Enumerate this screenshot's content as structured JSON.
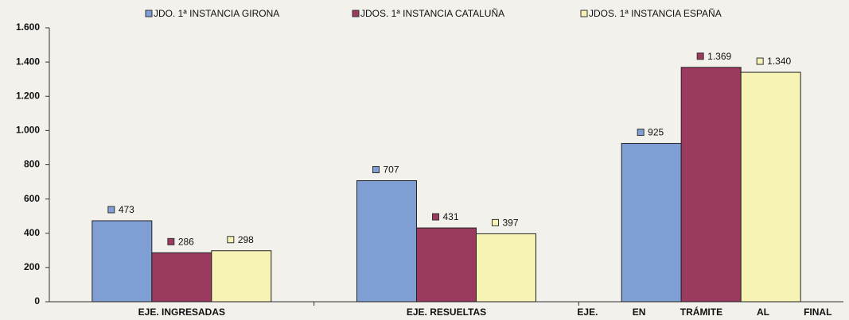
{
  "chart_data": {
    "type": "bar",
    "categories": [
      "EJE. INGRESADAS",
      "EJE. RESUELTAS",
      "EJE. EN TRÁMITE AL FINAL DEL AÑO"
    ],
    "series": [
      {
        "name": "JDO. 1ª INSTANCIA GIRONA",
        "color": "#7f9fd4",
        "values": [
          473,
          707,
          925
        ]
      },
      {
        "name": "JDOS. 1ª INSTANCIA CATALUÑA",
        "color": "#9b3a5e",
        "values": [
          286,
          431,
          1369
        ],
        "value_labels": [
          "286",
          "431",
          "1.369"
        ]
      },
      {
        "name": "JDOS. 1ª INSTANCIA ESPAÑA",
        "color": "#f7f3b4",
        "values": [
          298,
          397,
          1340
        ],
        "value_labels": [
          "298",
          "397",
          "1.340"
        ]
      }
    ],
    "ylim": [
      0,
      1600
    ],
    "yticks": [
      0,
      200,
      400,
      600,
      800,
      {
        "value": 1000,
        "label": "1.000"
      },
      {
        "value": 1200,
        "label": "1.200"
      },
      {
        "value": 1400,
        "label": "1.400"
      },
      {
        "value": 1600,
        "label": "1.600"
      }
    ],
    "grid": false,
    "legend": "top"
  }
}
